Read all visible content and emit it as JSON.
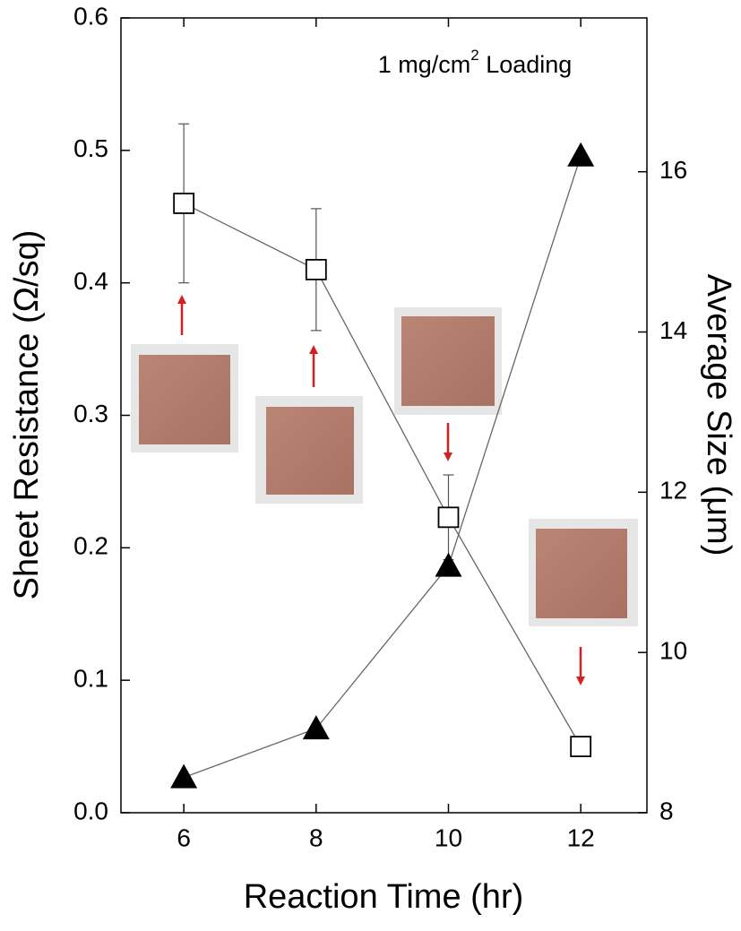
{
  "chart_data": {
    "type": "line",
    "annotation": [
      "1 mg/cm",
      "2",
      " Loading"
    ],
    "x_label": "Reaction Time (hr)",
    "y_label": "Sheet Resistance (Ω/sq)",
    "y2_label": "Average Size (μm)",
    "x": [
      6,
      8,
      10,
      12
    ],
    "xlim": [
      5.05,
      13
    ],
    "xticks": [
      6,
      8,
      10,
      12
    ],
    "ylim": [
      0,
      0.6
    ],
    "yticks": [
      {
        "value": 0,
        "label": "0.0"
      },
      0.1,
      0.2,
      0.3,
      0.4,
      0.5,
      0.6
    ],
    "y2lim": [
      8,
      17.92
    ],
    "y2ticks": [
      8,
      10,
      12,
      14,
      16
    ],
    "series": [
      {
        "marker": "square",
        "color": "#000000",
        "values": [
          0.46,
          0.41,
          0.223,
          0.05
        ],
        "errors": [
          0.06,
          0.046,
          0.032,
          0
        ]
      },
      {
        "marker": "triangle",
        "color": "#000000",
        "axis": "y2",
        "values": [
          8.44,
          9.05,
          11.08,
          16.2
        ]
      }
    ]
  }
}
